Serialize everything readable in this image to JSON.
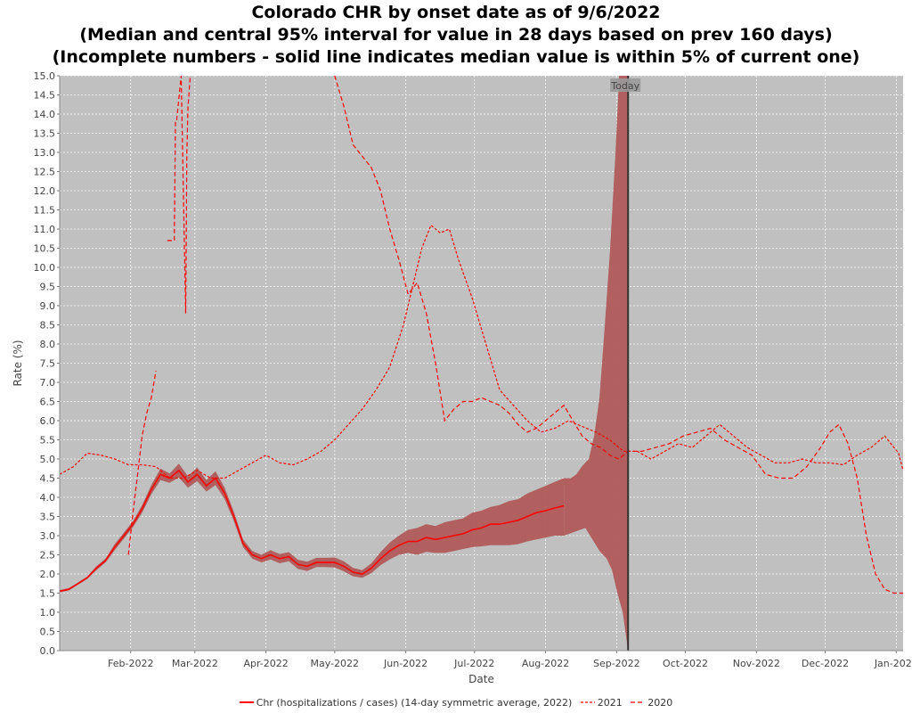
{
  "title_lines": [
    "Colorado CHR by onset date as of 9/6/2022",
    "(Median and central 95% interval for value in 28 days based on prev 160 days)",
    "(Incomplete numbers - solid line indicates median value is within 5% of current one)"
  ],
  "colors": {
    "plot_bg": "#c0c0c0",
    "series": "#ff0000",
    "band": "#b05a5a",
    "band_dark": "#8e4747",
    "today_line": "#333333",
    "grid": "#ffffff"
  },
  "chart_data": {
    "type": "line",
    "xlabel": "Date",
    "ylabel": "Rate (%)",
    "x_range": [
      "2022-01-01",
      "2023-01-04"
    ],
    "ylim": [
      0,
      15
    ],
    "y_ticks": [
      "0.0",
      "0.5",
      "1.0",
      "1.5",
      "2.0",
      "2.5",
      "3.0",
      "3.5",
      "4.0",
      "4.5",
      "5.0",
      "5.5",
      "6.0",
      "6.5",
      "7.0",
      "7.5",
      "8.0",
      "8.5",
      "9.0",
      "9.5",
      "10.0",
      "10.5",
      "11.0",
      "11.5",
      "12.0",
      "12.5",
      "13.0",
      "13.5",
      "14.0",
      "14.5",
      "15.0"
    ],
    "x_ticks": [
      {
        "date": "2022-02-01",
        "label": "Feb-2022"
      },
      {
        "date": "2022-03-01",
        "label": "Mar-2022"
      },
      {
        "date": "2022-04-01",
        "label": "Apr-2022"
      },
      {
        "date": "2022-05-01",
        "label": "May-2022"
      },
      {
        "date": "2022-06-01",
        "label": "Jun-2022"
      },
      {
        "date": "2022-07-01",
        "label": "Jul-2022"
      },
      {
        "date": "2022-08-01",
        "label": "Aug-2022"
      },
      {
        "date": "2022-09-01",
        "label": "Sep-2022"
      },
      {
        "date": "2022-10-01",
        "label": "Oct-2022"
      },
      {
        "date": "2022-11-01",
        "label": "Nov-2022"
      },
      {
        "date": "2022-12-01",
        "label": "Dec-2022"
      },
      {
        "date": "2023-01-01",
        "label": "Jan-2023"
      }
    ],
    "grid": true,
    "legend_position": "bottom",
    "today": {
      "date": "2022-09-06",
      "label": "Today"
    },
    "series": [
      {
        "name": "Chr (hospitalizations / cases) (14-day symmetric average, 2022)",
        "style": "solid",
        "x": [
          "2022-01-01",
          "2022-01-05",
          "2022-01-09",
          "2022-01-13",
          "2022-01-17",
          "2022-01-21",
          "2022-01-25",
          "2022-01-29",
          "2022-02-02",
          "2022-02-06",
          "2022-02-10",
          "2022-02-14",
          "2022-02-18",
          "2022-02-22",
          "2022-02-26",
          "2022-03-02",
          "2022-03-06",
          "2022-03-10",
          "2022-03-14",
          "2022-03-18",
          "2022-03-22",
          "2022-03-26",
          "2022-03-30",
          "2022-04-03",
          "2022-04-07",
          "2022-04-11",
          "2022-04-15",
          "2022-04-19",
          "2022-04-23",
          "2022-04-27",
          "2022-05-01",
          "2022-05-05",
          "2022-05-09",
          "2022-05-13",
          "2022-05-17",
          "2022-05-21",
          "2022-05-25",
          "2022-05-29",
          "2022-06-02",
          "2022-06-06",
          "2022-06-10",
          "2022-06-14",
          "2022-06-18",
          "2022-06-22",
          "2022-06-26",
          "2022-06-30",
          "2022-07-04",
          "2022-07-08",
          "2022-07-12",
          "2022-07-16",
          "2022-07-20",
          "2022-07-24",
          "2022-07-28",
          "2022-08-01",
          "2022-08-05",
          "2022-08-09"
        ],
        "y": [
          1.55,
          1.6,
          1.75,
          1.9,
          2.15,
          2.35,
          2.7,
          3.0,
          3.3,
          3.7,
          4.2,
          4.6,
          4.5,
          4.7,
          4.4,
          4.6,
          4.3,
          4.5,
          4.1,
          3.5,
          2.8,
          2.5,
          2.4,
          2.5,
          2.4,
          2.45,
          2.25,
          2.2,
          2.3,
          2.3,
          2.3,
          2.2,
          2.05,
          2.0,
          2.15,
          2.4,
          2.6,
          2.75,
          2.85,
          2.85,
          2.95,
          2.9,
          2.95,
          3.0,
          3.05,
          3.15,
          3.2,
          3.3,
          3.3,
          3.35,
          3.4,
          3.5,
          3.6,
          3.65,
          3.72,
          3.78
        ],
        "lower": [
          1.52,
          1.57,
          1.72,
          1.87,
          2.1,
          2.3,
          2.62,
          2.92,
          3.22,
          3.6,
          4.08,
          4.45,
          4.38,
          4.52,
          4.25,
          4.42,
          4.15,
          4.32,
          3.95,
          3.38,
          2.7,
          2.4,
          2.3,
          2.38,
          2.28,
          2.33,
          2.13,
          2.08,
          2.18,
          2.18,
          2.17,
          2.07,
          1.94,
          1.9,
          2.02,
          2.23,
          2.38,
          2.5,
          2.55,
          2.5,
          2.58,
          2.55,
          2.55,
          2.6,
          2.65,
          2.7,
          2.72,
          2.75,
          2.75,
          2.75,
          2.78,
          2.85,
          2.9,
          2.95,
          3.0,
          3.0
        ],
        "upper": [
          1.58,
          1.63,
          1.78,
          1.93,
          2.2,
          2.4,
          2.78,
          3.08,
          3.38,
          3.8,
          4.32,
          4.75,
          4.62,
          4.88,
          4.55,
          4.78,
          4.45,
          4.68,
          4.25,
          3.62,
          2.9,
          2.6,
          2.5,
          2.62,
          2.52,
          2.57,
          2.37,
          2.32,
          2.42,
          2.42,
          2.43,
          2.33,
          2.16,
          2.1,
          2.28,
          2.57,
          2.82,
          3.0,
          3.15,
          3.2,
          3.3,
          3.25,
          3.35,
          3.4,
          3.45,
          3.6,
          3.65,
          3.75,
          3.8,
          3.9,
          3.95,
          4.1,
          4.2,
          4.3,
          4.4,
          4.5
        ]
      },
      {
        "name": "2021",
        "style": "dashed",
        "x": [
          "2022-01-01",
          "2022-01-07",
          "2022-01-13",
          "2022-01-19",
          "2022-01-25",
          "2022-01-31",
          "2022-02-06",
          "2022-02-12",
          "2022-02-18",
          "2022-02-24",
          "2022-03-02",
          "2022-03-08",
          "2022-03-14",
          "2022-03-20",
          "2022-03-26",
          "2022-04-01",
          "2022-04-07",
          "2022-04-13",
          "2022-04-19",
          "2022-04-25",
          "2022-05-01",
          "2022-05-07",
          "2022-05-13",
          "2022-05-19",
          "2022-05-25",
          "2022-05-31",
          "2022-06-04",
          "2022-06-08",
          "2022-06-12",
          "2022-06-16",
          "2022-06-20",
          "2022-06-24",
          "2022-06-30",
          "2022-07-06",
          "2022-07-12",
          "2022-07-18",
          "2022-07-24",
          "2022-07-30",
          "2022-08-05",
          "2022-08-11",
          "2022-08-17",
          "2022-08-23",
          "2022-08-29",
          "2022-09-04",
          "2022-09-10",
          "2022-09-16",
          "2022-09-22",
          "2022-09-28",
          "2022-10-04",
          "2022-10-10",
          "2022-10-16",
          "2022-10-22",
          "2022-10-28",
          "2022-11-03",
          "2022-11-09",
          "2022-11-15",
          "2022-11-21",
          "2022-11-27",
          "2022-12-03",
          "2022-12-09",
          "2022-12-15",
          "2022-12-21",
          "2022-12-27",
          "2023-01-02",
          "2023-01-04"
        ],
        "y": [
          4.6,
          4.8,
          5.15,
          5.1,
          5.0,
          4.85,
          4.85,
          4.8,
          4.5,
          4.5,
          4.7,
          4.5,
          4.5,
          4.7,
          4.9,
          5.1,
          4.9,
          4.85,
          5.0,
          5.2,
          5.5,
          5.9,
          6.3,
          6.8,
          7.4,
          8.5,
          9.5,
          10.5,
          11.1,
          10.9,
          11.0,
          10.2,
          9.2,
          8.0,
          6.8,
          6.4,
          6.0,
          5.7,
          5.8,
          6.0,
          5.85,
          5.7,
          5.5,
          5.2,
          5.2,
          5.0,
          5.2,
          5.4,
          5.3,
          5.6,
          5.9,
          5.6,
          5.3,
          5.1,
          4.9,
          4.9,
          5.0,
          4.9,
          4.9,
          4.85,
          5.1,
          5.3,
          5.6,
          5.15,
          4.7
        ]
      },
      {
        "name": "2020",
        "style": "dashed",
        "segments": [
          {
            "x": [
              "2022-01-31",
              "2022-02-02",
              "2022-02-04",
              "2022-02-06",
              "2022-02-08",
              "2022-02-10",
              "2022-02-12"
            ],
            "y": [
              2.5,
              3.6,
              4.6,
              5.6,
              6.2,
              6.6,
              7.3
            ]
          },
          {
            "x": [
              "2022-02-17",
              "2022-02-20",
              "2022-02-20.5",
              "2022-02-21",
              "2022-02-23",
              "2022-02-25",
              "2022-02-25.5",
              "2022-02-26",
              "2022-02-27"
            ],
            "y": [
              10.7,
              10.7,
              13.8,
              13.8,
              15.0,
              8.8,
              13.0,
              14.2,
              15.0
            ]
          },
          {
            "x": [
              "2022-05-01",
              "2022-05-05",
              "2022-05-09",
              "2022-05-13",
              "2022-05-17",
              "2022-05-21",
              "2022-05-25",
              "2022-05-29",
              "2022-06-02",
              "2022-06-06",
              "2022-06-10",
              "2022-06-14",
              "2022-06-18",
              "2022-06-22",
              "2022-06-26",
              "2022-06-30",
              "2022-07-04",
              "2022-07-08",
              "2022-07-12",
              "2022-07-16",
              "2022-07-20",
              "2022-07-24",
              "2022-07-28",
              "2022-08-01",
              "2022-08-05",
              "2022-08-09",
              "2022-08-13",
              "2022-08-17",
              "2022-08-21",
              "2022-08-25",
              "2022-08-29",
              "2022-09-02",
              "2022-09-06",
              "2022-09-12",
              "2022-09-18",
              "2022-09-24",
              "2022-09-30",
              "2022-10-06",
              "2022-10-12",
              "2022-10-18",
              "2022-10-24",
              "2022-10-30",
              "2022-11-05",
              "2022-11-11",
              "2022-11-17",
              "2022-11-23",
              "2022-11-29",
              "2022-12-03",
              "2022-12-07",
              "2022-12-11",
              "2022-12-15",
              "2022-12-19",
              "2022-12-23",
              "2022-12-27",
              "2022-12-31",
              "2023-01-04"
            ],
            "y": [
              15.0,
              14.2,
              13.2,
              12.9,
              12.6,
              12.0,
              11.0,
              10.2,
              9.3,
              9.6,
              8.8,
              7.5,
              6.0,
              6.3,
              6.5,
              6.5,
              6.6,
              6.5,
              6.4,
              6.2,
              5.9,
              5.7,
              5.8,
              6.0,
              6.2,
              6.4,
              6.0,
              5.6,
              5.4,
              5.3,
              5.1,
              5.0,
              5.2,
              5.2,
              5.3,
              5.4,
              5.6,
              5.7,
              5.8,
              5.5,
              5.3,
              5.1,
              4.6,
              4.5,
              4.5,
              4.8,
              5.3,
              5.7,
              5.9,
              5.4,
              4.5,
              3.0,
              2.0,
              1.6,
              1.5,
              1.5
            ]
          }
        ]
      }
    ]
  }
}
